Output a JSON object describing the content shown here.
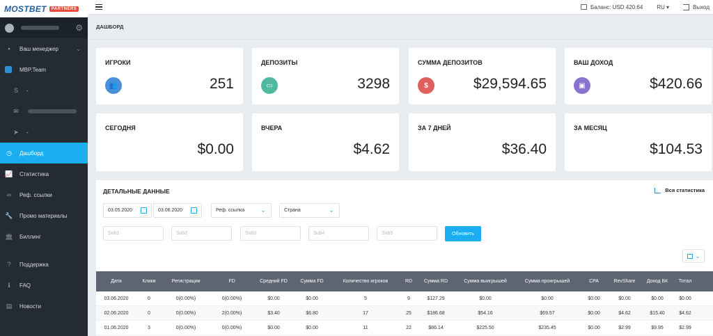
{
  "brand": {
    "name": "MOSTBET",
    "badge": "PARTNERS"
  },
  "topbar": {
    "balance": "Баланс: USD 420.64",
    "lang": "RU ▾",
    "logout": "Выход"
  },
  "page_title": "ДАШБОРД",
  "sidebar": {
    "manager": "Ваш менеджер",
    "team": "MBP.Team",
    "skype": "-",
    "telegram": "-",
    "items": [
      {
        "label": "Дашборд",
        "icon": "dashboard-icon"
      },
      {
        "label": "Статистика",
        "icon": "chart-icon"
      },
      {
        "label": "Реф. ссылки",
        "icon": "link-icon"
      },
      {
        "label": "Промо материалы",
        "icon": "wrench-icon"
      },
      {
        "label": "Биллинг",
        "icon": "bank-icon"
      },
      {
        "label": "Поддержка",
        "icon": "question-icon"
      },
      {
        "label": "FAQ",
        "icon": "info-icon"
      },
      {
        "label": "Новости",
        "icon": "news-icon"
      }
    ]
  },
  "stats_cards": [
    {
      "title": "ИГРОКИ",
      "value": "251",
      "icon": "users-icon",
      "color": "#4a90d9"
    },
    {
      "title": "ДЕПОЗИТЫ",
      "value": "3298",
      "icon": "card-icon",
      "color": "#4fb99f"
    },
    {
      "title": "СУММА ДЕПОЗИТОВ",
      "value": "$29,594.65",
      "icon": "dollar-icon",
      "color": "#e0605e"
    },
    {
      "title": "ВАШ ДОХОД",
      "value": "$420.66",
      "icon": "wallet-icon",
      "color": "#8a72d0"
    }
  ],
  "period_cards": [
    {
      "title": "СЕГОДНЯ",
      "value": "$0.00"
    },
    {
      "title": "ВЧЕРА",
      "value": "$4.62"
    },
    {
      "title": "ЗА 7 ДНЕЙ",
      "value": "$36.40"
    },
    {
      "title": "ЗА МЕСЯЦ",
      "value": "$104.53"
    }
  ],
  "details": {
    "title": "ДЕТАЛЬНЫЕ ДАННЫЕ",
    "all_stats": "Вся статистика",
    "date_from": "03.05.2020",
    "date_to": "03.06.2020",
    "ref_link": "Реф. ссылка",
    "country": "Страна",
    "sub1": "Sub1",
    "sub2": "Sub2",
    "sub3": "Sub3",
    "sub4": "Sub4",
    "sub5": "Sub5",
    "update": "Обновить"
  },
  "table": {
    "headers": [
      "Дата",
      "Клики",
      "Регистрации",
      "FD",
      "Средний FD",
      "Сумма FD",
      "Количество игроков",
      "RD",
      "Сумма RD",
      "Сумма выигрышей",
      "Сумма проигрышей",
      "CPA",
      "RevShare",
      "Доход БК",
      "Тотал"
    ],
    "rows": [
      [
        "03.06.2020",
        "0",
        "0(0.00%)",
        "0(0.00%)",
        "$0.00",
        "$0.00",
        "5",
        "9",
        "$127.29",
        "$0.00",
        "$0.00",
        "$0.00",
        "$0.00",
        "$0.00",
        "$0.00"
      ],
      [
        "02.06.2020",
        "0",
        "0(0.00%)",
        "2(0.00%)",
        "$3.40",
        "$6.80",
        "17",
        "25",
        "$186.68",
        "$54.16",
        "$69.57",
        "$0.00",
        "$4.62",
        "$15.40",
        "$4.62"
      ],
      [
        "01.06.2020",
        "3",
        "0(0.00%)",
        "0(0.00%)",
        "$0.00",
        "$0.00",
        "11",
        "22",
        "$86.14",
        "$225.50",
        "$235.45",
        "$0.00",
        "$2.99",
        "$9.95",
        "$2.99"
      ]
    ]
  }
}
